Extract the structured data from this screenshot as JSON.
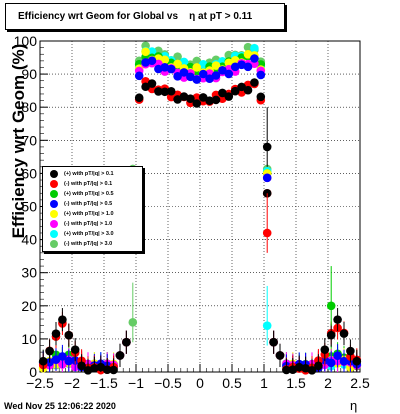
{
  "chart_data": {
    "type": "scatter",
    "title": "Efficiency wrt Geom for Global vs    η at pT > 0.11",
    "xlabel": "η",
    "ylabel": "Efficiency wrt Geom (%)",
    "xlim": [
      -2.5,
      2.5
    ],
    "ylim": [
      0,
      100
    ],
    "x_ticks": [
      "−2.5",
      "−2",
      "−1.5",
      "−1",
      "−0.5",
      "0",
      "0.5",
      "1",
      "1.5",
      "2",
      "2.5"
    ],
    "y_ticks": [
      "0",
      "10",
      "20",
      "30",
      "40",
      "50",
      "60",
      "70",
      "80",
      "90",
      "100"
    ],
    "grid": true,
    "legend_position": "left",
    "timestamp": "Wed Nov 25 12:06:22 2020",
    "series": [
      {
        "name": "(+) with pT/|q| > 0.1",
        "color": "#000000",
        "plateau": 86,
        "peak": 13,
        "dip": 0,
        "hole": 0
      },
      {
        "name": "(-) with pT/|q| > 0.1",
        "color": "#ff0000",
        "plateau": 86,
        "peak": 12,
        "dip": 0,
        "hole": 0
      },
      {
        "name": "(+) with pT/|q| > 0.5",
        "color": "#00cc00",
        "plateau": 95,
        "peak": 3,
        "dip": 1,
        "hole": 0
      },
      {
        "name": "(-) with pT/|q| > 0.5",
        "color": "#0000ff",
        "plateau": 93,
        "peak": 2,
        "dip": 1,
        "hole": 0
      },
      {
        "name": "(+) with pT/|q| > 1.0",
        "color": "#ffff00",
        "plateau": 95,
        "peak": 1,
        "dip": 1,
        "hole": 0
      },
      {
        "name": "(-) with pT/|q| > 1.0",
        "color": "#ff00ff",
        "plateau": 93,
        "peak": 1,
        "dip": 1,
        "hole": 0
      },
      {
        "name": "(+) with pT/|q| > 3.0",
        "color": "#00ffff",
        "plateau": 96,
        "peak": 1,
        "dip": 1,
        "hole": 0
      },
      {
        "name": "(-) with pT/|q| > 3.0",
        "color": "#66cc66",
        "plateau": 97,
        "peak": 1,
        "dip": 1,
        "hole": 0
      }
    ],
    "annotations": [
      {
        "x": 1.05,
        "y": 42,
        "color": "#ff0000"
      },
      {
        "x": 1.05,
        "y": 68,
        "color": "#000000"
      },
      {
        "x": 2.05,
        "y": 20,
        "color": "#00cc00"
      },
      {
        "x": -1.05,
        "y": 15,
        "color": "#66cc66"
      },
      {
        "x": 1.05,
        "y": 14,
        "color": "#00ffff"
      }
    ]
  }
}
